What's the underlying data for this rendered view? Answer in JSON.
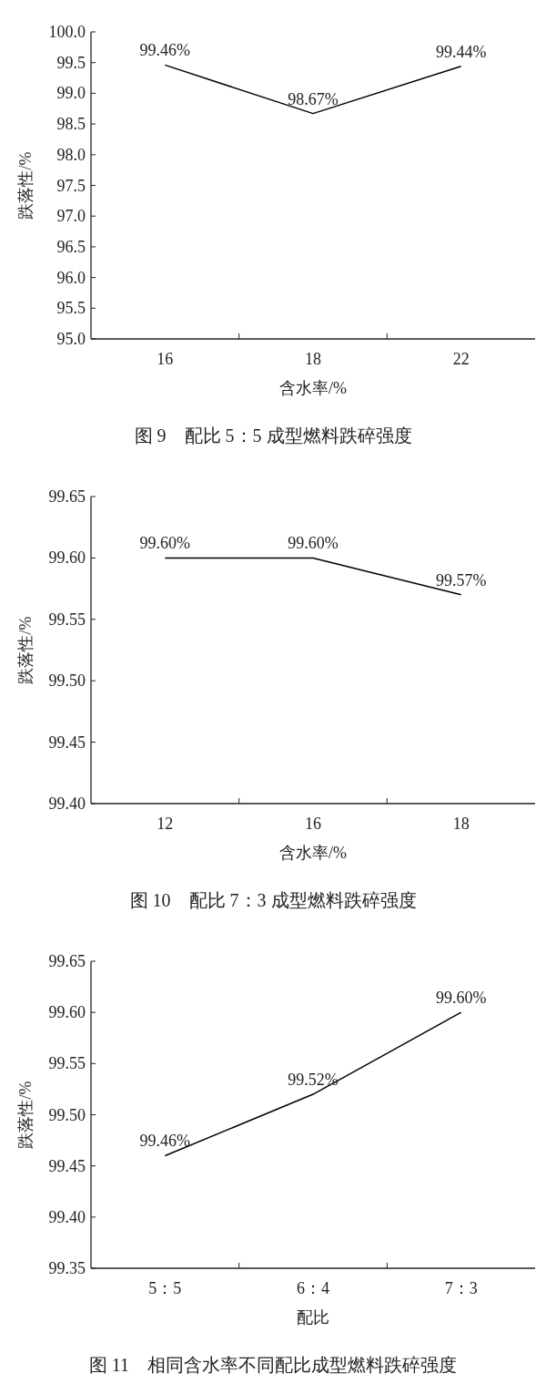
{
  "chart_data": [
    {
      "type": "line",
      "title": "图 9　配比 5：5 成型燃料跌碎强度",
      "xlabel": "含水率/%",
      "ylabel": "跌落性/%",
      "categories": [
        "16",
        "18",
        "22"
      ],
      "series": [
        {
          "color": "#000000",
          "values": [
            99.46,
            98.67,
            99.44
          ],
          "value_labels": [
            "99.46%",
            "98.67%",
            "99.44%"
          ]
        }
      ],
      "ylim": [
        95,
        100
      ],
      "yticks": [
        {
          "value": 95,
          "label": "95.0"
        },
        95.5,
        {
          "value": 96,
          "label": "96.0"
        },
        96.5,
        {
          "value": 97,
          "label": "97.0"
        },
        97.5,
        {
          "value": 98,
          "label": "98.0"
        },
        98.5,
        {
          "value": 99,
          "label": "99.0"
        },
        99.5,
        {
          "value": 100,
          "label": "100.0"
        }
      ]
    },
    {
      "type": "line",
      "title": "图 10　配比 7：3 成型燃料跌碎强度",
      "xlabel": "含水率/%",
      "ylabel": "跌落性/%",
      "categories": [
        "12",
        "16",
        "18"
      ],
      "series": [
        {
          "color": "#000000",
          "values": [
            99.6,
            99.6,
            99.57
          ],
          "value_labels": [
            "99.60%",
            "99.60%",
            "99.57%"
          ]
        }
      ],
      "ylim": [
        99.4,
        99.65
      ],
      "yticks": [
        {
          "value": 99.4,
          "label": "99.40"
        },
        99.45,
        {
          "value": 99.5,
          "label": "99.50"
        },
        99.55,
        {
          "value": 99.6,
          "label": "99.60"
        },
        99.65
      ]
    },
    {
      "type": "line",
      "title": "图 11　相同含水率不同配比成型燃料跌碎强度",
      "xlabel": "配比",
      "ylabel": "跌落性/%",
      "categories": [
        "5：5",
        "6：4",
        "7：3"
      ],
      "series": [
        {
          "color": "#000000",
          "values": [
            99.46,
            99.52,
            99.6
          ],
          "value_labels": [
            "99.46%",
            "99.52%",
            "99.60%"
          ]
        }
      ],
      "ylim": [
        99.35,
        99.65
      ],
      "yticks": [
        {
          "value": 99.35,
          "label": "99.35"
        },
        {
          "value": 99.4,
          "label": "99.40"
        },
        99.45,
        {
          "value": 99.5,
          "label": "99.50"
        },
        99.55,
        {
          "value": 99.6,
          "label": "99.60"
        },
        99.65
      ]
    }
  ]
}
